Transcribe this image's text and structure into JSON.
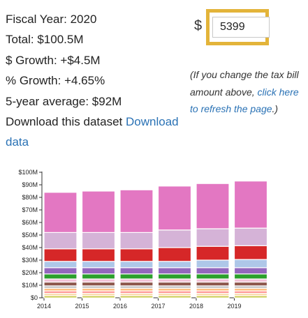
{
  "summary": {
    "fiscal_year": "Fiscal Year: 2020",
    "total": "Total: $100.5M",
    "dollar_growth": "$ Growth: +$4.5M",
    "percent_growth": "% Growth: +4.65%",
    "five_year_average": "5-year average: $92M",
    "download_prefix": "Download this dataset ",
    "download_link": "Download data"
  },
  "tax_bill": {
    "currency_symbol": "$",
    "value": "5399"
  },
  "note": {
    "prefix": "(If you change the tax bill amount above, ",
    "link": "click here to refresh the page",
    "suffix": ".)"
  },
  "chart_data": {
    "type": "bar",
    "stacked": true,
    "categories": [
      "2014",
      "2015",
      "2016",
      "2017",
      "2018",
      "2019"
    ],
    "yticks": [
      "$0",
      "$10M",
      "$20M",
      "$30M",
      "$40M",
      "$50M",
      "$60M",
      "$70M",
      "$80M",
      "$90M",
      "$100M"
    ],
    "ylim": [
      0,
      100
    ],
    "unit": "$M",
    "grid": false,
    "title": "",
    "xlabel": "",
    "ylabel": "",
    "series": [
      {
        "color": "#bcbd22",
        "values": [
          1.5,
          1.5,
          1.5,
          1.5,
          1.5,
          1.5
        ]
      },
      {
        "color": "#f7d9a8",
        "values": [
          2.0,
          2.0,
          2.0,
          2.0,
          2.0,
          2.0
        ]
      },
      {
        "color": "#ff9896",
        "values": [
          2.0,
          2.0,
          2.0,
          2.0,
          2.0,
          2.0
        ]
      },
      {
        "color": "#ffbb78",
        "values": [
          2.0,
          2.0,
          2.0,
          2.0,
          2.0,
          2.0
        ]
      },
      {
        "color": "#c7c7c7",
        "values": [
          2.0,
          2.0,
          2.0,
          2.0,
          2.0,
          2.0
        ]
      },
      {
        "color": "#8c564b",
        "values": [
          3.0,
          3.0,
          3.0,
          3.0,
          3.0,
          3.0
        ]
      },
      {
        "color": "#f2c2d6",
        "values": [
          2.5,
          2.5,
          2.5,
          2.5,
          2.5,
          2.5
        ]
      },
      {
        "color": "#2ca02c",
        "values": [
          4.0,
          4.0,
          4.0,
          4.0,
          4.0,
          4.0
        ]
      },
      {
        "color": "#9467bd",
        "values": [
          5.0,
          5.0,
          5.0,
          5.0,
          5.0,
          5.0
        ]
      },
      {
        "color": "#aec7e8",
        "values": [
          5.0,
          5.0,
          5.0,
          5.0,
          6.0,
          6.5
        ]
      },
      {
        "color": "#d62728",
        "values": [
          10.0,
          10.0,
          10.0,
          11.0,
          11.0,
          11.0
        ]
      },
      {
        "color": "#d5b3d7",
        "values": [
          13.0,
          13.0,
          13.0,
          14.0,
          14.0,
          14.0
        ]
      },
      {
        "color": "#e377c2",
        "values": [
          32.0,
          33.0,
          34.0,
          35.0,
          36.0,
          37.5
        ]
      }
    ]
  }
}
